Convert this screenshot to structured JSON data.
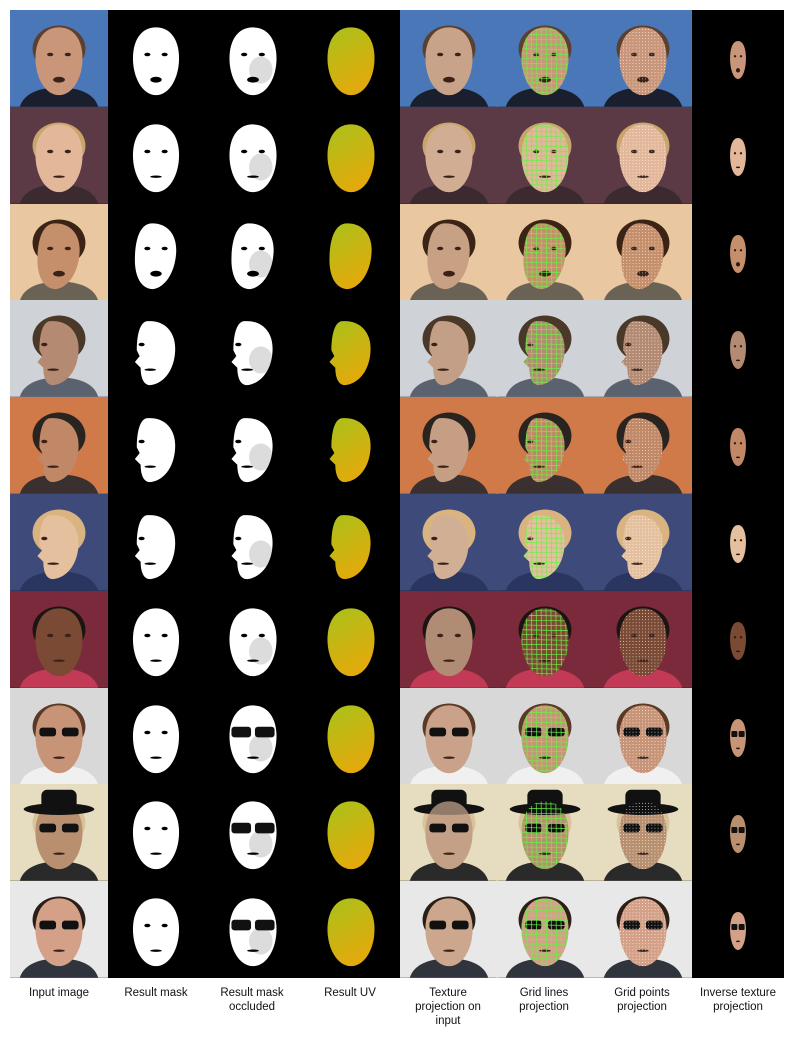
{
  "figure": {
    "columns": [
      {
        "id": "input",
        "label": "Input image"
      },
      {
        "id": "mask",
        "label": "Result mask"
      },
      {
        "id": "mask_occ",
        "label": "Result mask\noccluded"
      },
      {
        "id": "uv",
        "label": "Result UV"
      },
      {
        "id": "tex",
        "label": "Texture\nprojection on\ninput"
      },
      {
        "id": "grid_lines",
        "label": "Grid lines\nprojection"
      },
      {
        "id": "grid_points",
        "label": "Grid points\nprojection"
      },
      {
        "id": "inverse",
        "label": "Inverse texture\nprojection"
      }
    ],
    "rows": [
      {
        "bg": "#4a77b8",
        "skin": "#c9967a",
        "hair": "#5a4030",
        "shirt": "#1a1f2e",
        "pose": "frontal",
        "mouth_open": true,
        "glasses": false,
        "hat": false
      },
      {
        "bg": "#5b3a46",
        "skin": "#e2b79a",
        "hair": "#c8a56a",
        "shirt": "#3b2a30",
        "pose": "frontal",
        "mouth_open": false,
        "glasses": false,
        "hat": false
      },
      {
        "bg": "#e9c7a0",
        "skin": "#c68f6b",
        "hair": "#3b2416",
        "shirt": "#6b6256",
        "pose": "three-quarter",
        "mouth_open": true,
        "glasses": false,
        "hat": false
      },
      {
        "bg": "#cfd3d7",
        "skin": "#b58a72",
        "hair": "#4a3828",
        "shirt": "#5a6270",
        "pose": "profile",
        "mouth_open": false,
        "glasses": false,
        "hat": false
      },
      {
        "bg": "#d07a4a",
        "skin": "#c08866",
        "hair": "#2a2420",
        "shirt": "#3a3030",
        "pose": "profile",
        "mouth_open": false,
        "glasses": false,
        "hat": false
      },
      {
        "bg": "#3d4a7a",
        "skin": "#e4c09e",
        "hair": "#d9b480",
        "shirt": "#2a3560",
        "pose": "profile",
        "mouth_open": false,
        "glasses": false,
        "hat": false
      },
      {
        "bg": "#7a2a3a",
        "skin": "#7a4a34",
        "hair": "#1a1412",
        "shirt": "#c23a55",
        "pose": "frontal",
        "mouth_open": false,
        "glasses": false,
        "hat": false
      },
      {
        "bg": "#d8d8d8",
        "skin": "#c89478",
        "hair": "#5a3a26",
        "shirt": "#f0f0f0",
        "pose": "frontal",
        "mouth_open": false,
        "glasses": true,
        "hat": false
      },
      {
        "bg": "#e6dcc0",
        "skin": "#b89070",
        "hair": "#d8c49a",
        "shirt": "#2a2a2a",
        "pose": "frontal",
        "mouth_open": false,
        "glasses": true,
        "hat": true
      },
      {
        "bg": "#e8e8e8",
        "skin": "#d4a088",
        "hair": "#2a1e16",
        "shirt": "#30343c",
        "pose": "frontal",
        "mouth_open": false,
        "glasses": true,
        "hat": false
      }
    ],
    "colors": {
      "mask": "#ffffff",
      "uv_top": "#a8c21a",
      "uv_bottom": "#e2aa0c",
      "grid_line": "#6af048",
      "grid_point": "#ffffff",
      "occlusion_grey": "#9a9a9a"
    }
  }
}
